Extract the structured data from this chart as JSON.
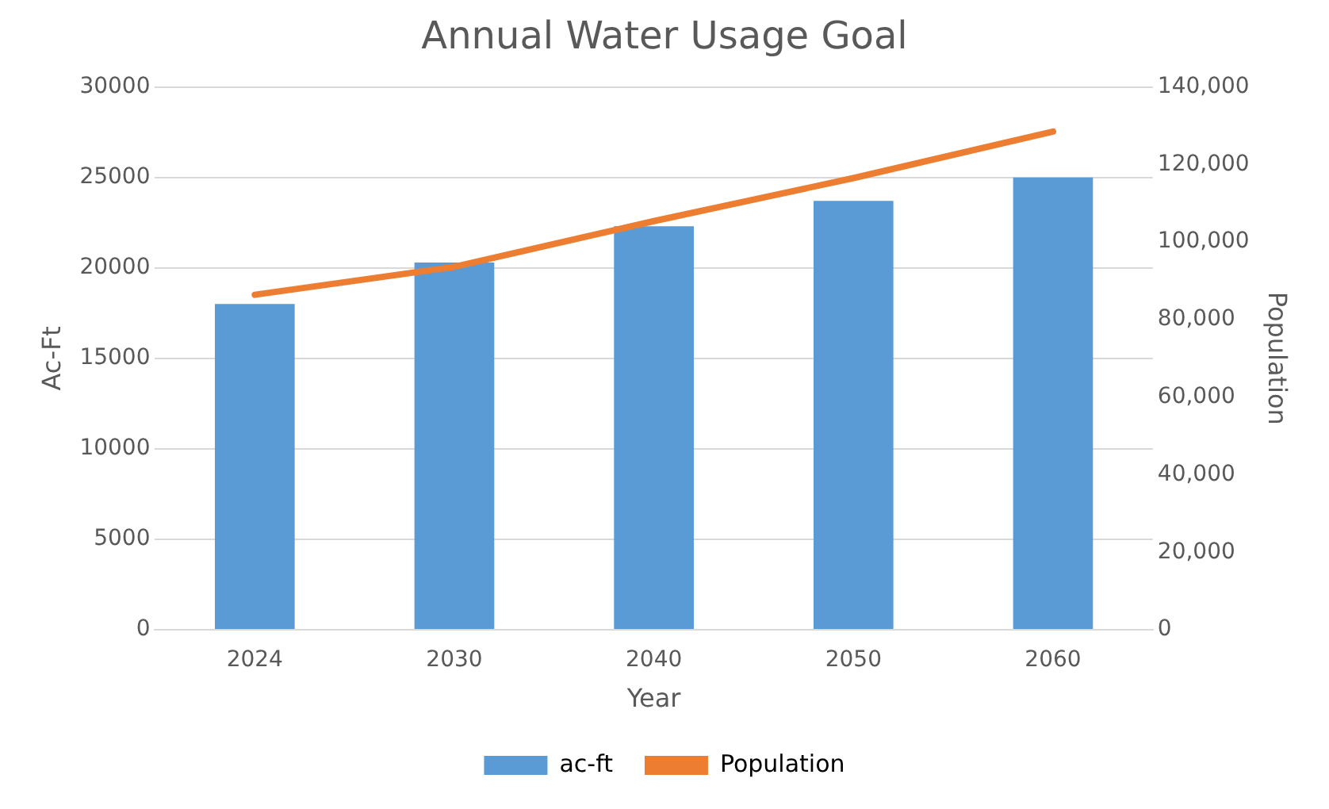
{
  "chart_data": {
    "type": "bar",
    "title": "Annual Water Usage Goal",
    "xlabel": "Year",
    "ylabel": "Ac-Ft",
    "y2label": "Population",
    "categories": [
      "2024",
      "2030",
      "2040",
      "2050",
      "2060"
    ],
    "series": [
      {
        "name": "ac-ft",
        "color": "#5b9bd5",
        "values": [
          18000,
          20300,
          22300,
          23700,
          25000
        ]
      },
      {
        "name": "Population",
        "type": "line",
        "axis": "y2",
        "color": "#ed7d31",
        "values": [
          86400,
          93600,
          105400,
          116500,
          128500
        ]
      }
    ],
    "ylim": [
      0,
      30000
    ],
    "yticks": [
      0,
      5000,
      10000,
      15000,
      20000,
      25000,
      30000
    ],
    "y2lim": [
      0,
      140000
    ],
    "y2ticks": [
      {
        "value": 0,
        "label": "0"
      },
      {
        "value": 20000,
        "label": "20,000"
      },
      {
        "value": 40000,
        "label": "40,000"
      },
      {
        "value": 60000,
        "label": "60,000"
      },
      {
        "value": 80000,
        "label": "80,000"
      },
      {
        "value": 100000,
        "label": "100,000"
      },
      {
        "value": 120000,
        "label": "120,000"
      },
      {
        "value": 140000,
        "label": "140,000"
      }
    ],
    "grid": "y",
    "legend": "bottom",
    "marker": "none"
  }
}
